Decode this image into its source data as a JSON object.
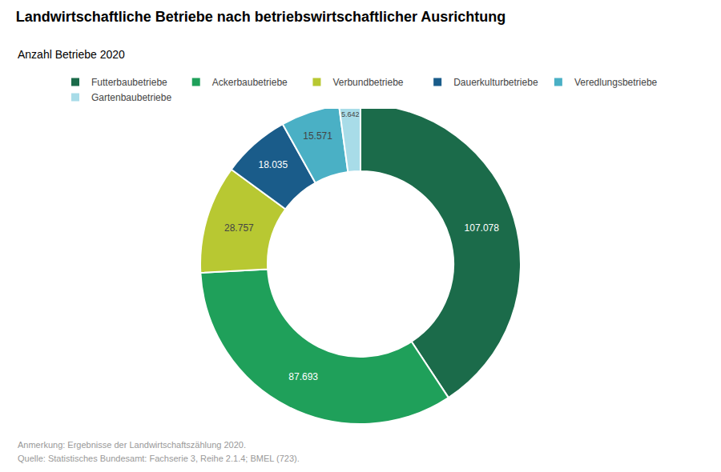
{
  "chart_data": {
    "type": "donut",
    "title": "Landwirtschaftliche Betriebe nach betriebswirtschaftlicher Ausrichtung",
    "subtitle": "Anzahl Betriebe 2020",
    "annotations": [
      "Anmerkung: Ergebnisse der Landwirtschaftszählung 2020.",
      "Quelle: Statistisches Bundesamt: Fachserie 3, Reihe 2.1.4; BMEL (723)."
    ],
    "categories": [
      "Futterbaubetriebe",
      "Ackerbaubetriebe",
      "Verbundbetriebe",
      "Dauerkulturbetriebe",
      "Veredlungsbetriebe",
      "Gartenbaubetriebe"
    ],
    "values": [
      107078,
      87693,
      28757,
      18035,
      15571,
      5642
    ],
    "value_labels": [
      "107.078",
      "87.693",
      "28.757",
      "18.035",
      "15.571",
      "5.642"
    ],
    "colors": [
      "#1b6b4a",
      "#1fa05a",
      "#b8c832",
      "#1a5c8a",
      "#4ab0c5",
      "#a8dce8"
    ],
    "data_labels": true,
    "legend": "top"
  }
}
